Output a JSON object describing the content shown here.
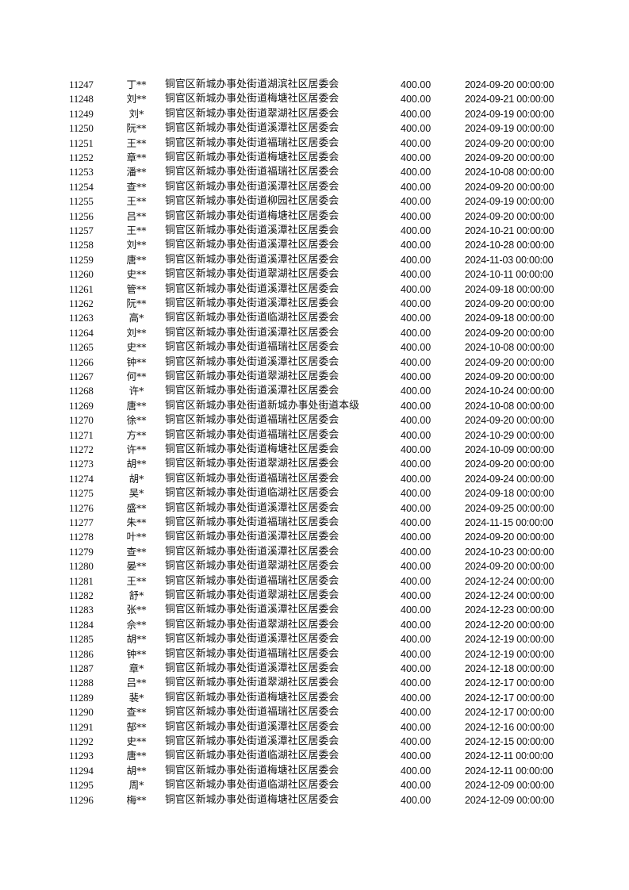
{
  "rows": [
    [
      "11247",
      "丁**",
      "铜官区新城办事处街道湖滨社区居委会",
      "400.00",
      "2024-09-20 00:00:00"
    ],
    [
      "11248",
      "刘**",
      "铜官区新城办事处街道梅塘社区居委会",
      "400.00",
      "2024-09-21 00:00:00"
    ],
    [
      "11249",
      "刘*",
      "铜官区新城办事处街道翠湖社区居委会",
      "400.00",
      "2024-09-19 00:00:00"
    ],
    [
      "11250",
      "阮**",
      "铜官区新城办事处街道溪潭社区居委会",
      "400.00",
      "2024-09-19 00:00:00"
    ],
    [
      "11251",
      "王**",
      "铜官区新城办事处街道福瑞社区居委会",
      "400.00",
      "2024-09-20 00:00:00"
    ],
    [
      "11252",
      "章**",
      "铜官区新城办事处街道梅塘社区居委会",
      "400.00",
      "2024-09-20 00:00:00"
    ],
    [
      "11253",
      "潘**",
      "铜官区新城办事处街道福瑞社区居委会",
      "400.00",
      "2024-10-08 00:00:00"
    ],
    [
      "11254",
      "查**",
      "铜官区新城办事处街道溪潭社区居委会",
      "400.00",
      "2024-09-20 00:00:00"
    ],
    [
      "11255",
      "王**",
      "铜官区新城办事处街道柳园社区居委会",
      "400.00",
      "2024-09-19 00:00:00"
    ],
    [
      "11256",
      "吕**",
      "铜官区新城办事处街道梅塘社区居委会",
      "400.00",
      "2024-09-20 00:00:00"
    ],
    [
      "11257",
      "王**",
      "铜官区新城办事处街道溪潭社区居委会",
      "400.00",
      "2024-10-21 00:00:00"
    ],
    [
      "11258",
      "刘**",
      "铜官区新城办事处街道溪潭社区居委会",
      "400.00",
      "2024-10-28 00:00:00"
    ],
    [
      "11259",
      "唐**",
      "铜官区新城办事处街道溪潭社区居委会",
      "400.00",
      "2024-11-03 00:00:00"
    ],
    [
      "11260",
      "史**",
      "铜官区新城办事处街道翠湖社区居委会",
      "400.00",
      "2024-10-11 00:00:00"
    ],
    [
      "11261",
      "管**",
      "铜官区新城办事处街道溪潭社区居委会",
      "400.00",
      "2024-09-18 00:00:00"
    ],
    [
      "11262",
      "阮**",
      "铜官区新城办事处街道溪潭社区居委会",
      "400.00",
      "2024-09-20 00:00:00"
    ],
    [
      "11263",
      "高*",
      "铜官区新城办事处街道临湖社区居委会",
      "400.00",
      "2024-09-18 00:00:00"
    ],
    [
      "11264",
      "刘**",
      "铜官区新城办事处街道溪潭社区居委会",
      "400.00",
      "2024-09-20 00:00:00"
    ],
    [
      "11265",
      "史**",
      "铜官区新城办事处街道福瑞社区居委会",
      "400.00",
      "2024-10-08 00:00:00"
    ],
    [
      "11266",
      "钟**",
      "铜官区新城办事处街道溪潭社区居委会",
      "400.00",
      "2024-09-20 00:00:00"
    ],
    [
      "11267",
      "何**",
      "铜官区新城办事处街道翠湖社区居委会",
      "400.00",
      "2024-09-20 00:00:00"
    ],
    [
      "11268",
      "许*",
      "铜官区新城办事处街道溪潭社区居委会",
      "400.00",
      "2024-10-24 00:00:00"
    ],
    [
      "11269",
      "唐**",
      "铜官区新城办事处街道新城办事处街道本级",
      "400.00",
      "2024-10-08 00:00:00"
    ],
    [
      "11270",
      "徐**",
      "铜官区新城办事处街道福瑞社区居委会",
      "400.00",
      "2024-09-20 00:00:00"
    ],
    [
      "11271",
      "方**",
      "铜官区新城办事处街道福瑞社区居委会",
      "400.00",
      "2024-10-29 00:00:00"
    ],
    [
      "11272",
      "许**",
      "铜官区新城办事处街道梅塘社区居委会",
      "400.00",
      "2024-10-09 00:00:00"
    ],
    [
      "11273",
      "胡**",
      "铜官区新城办事处街道翠湖社区居委会",
      "400.00",
      "2024-09-20 00:00:00"
    ],
    [
      "11274",
      "胡*",
      "铜官区新城办事处街道福瑞社区居委会",
      "400.00",
      "2024-09-24 00:00:00"
    ],
    [
      "11275",
      "吴*",
      "铜官区新城办事处街道临湖社区居委会",
      "400.00",
      "2024-09-18 00:00:00"
    ],
    [
      "11276",
      "盛**",
      "铜官区新城办事处街道溪潭社区居委会",
      "400.00",
      "2024-09-25 00:00:00"
    ],
    [
      "11277",
      "朱**",
      "铜官区新城办事处街道福瑞社区居委会",
      "400.00",
      "2024-11-15 00:00:00"
    ],
    [
      "11278",
      "叶**",
      "铜官区新城办事处街道溪潭社区居委会",
      "400.00",
      "2024-09-20 00:00:00"
    ],
    [
      "11279",
      "查**",
      "铜官区新城办事处街道溪潭社区居委会",
      "400.00",
      "2024-10-23 00:00:00"
    ],
    [
      "11280",
      "晏**",
      "铜官区新城办事处街道翠湖社区居委会",
      "400.00",
      "2024-09-20 00:00:00"
    ],
    [
      "11281",
      "王**",
      "铜官区新城办事处街道福瑞社区居委会",
      "400.00",
      "2024-12-24 00:00:00"
    ],
    [
      "11282",
      "舒*",
      "铜官区新城办事处街道翠湖社区居委会",
      "400.00",
      "2024-12-24 00:00:00"
    ],
    [
      "11283",
      "张**",
      "铜官区新城办事处街道溪潭社区居委会",
      "400.00",
      "2024-12-23 00:00:00"
    ],
    [
      "11284",
      "佘**",
      "铜官区新城办事处街道翠湖社区居委会",
      "400.00",
      "2024-12-20 00:00:00"
    ],
    [
      "11285",
      "胡**",
      "铜官区新城办事处街道溪潭社区居委会",
      "400.00",
      "2024-12-19 00:00:00"
    ],
    [
      "11286",
      "钟**",
      "铜官区新城办事处街道福瑞社区居委会",
      "400.00",
      "2024-12-19 00:00:00"
    ],
    [
      "11287",
      "章*",
      "铜官区新城办事处街道溪潭社区居委会",
      "400.00",
      "2024-12-18 00:00:00"
    ],
    [
      "11288",
      "吕**",
      "铜官区新城办事处街道翠湖社区居委会",
      "400.00",
      "2024-12-17 00:00:00"
    ],
    [
      "11289",
      "裴*",
      "铜官区新城办事处街道梅塘社区居委会",
      "400.00",
      "2024-12-17 00:00:00"
    ],
    [
      "11290",
      "查**",
      "铜官区新城办事处街道福瑞社区居委会",
      "400.00",
      "2024-12-17 00:00:00"
    ],
    [
      "11291",
      "郜**",
      "铜官区新城办事处街道溪潭社区居委会",
      "400.00",
      "2024-12-16 00:00:00"
    ],
    [
      "11292",
      "史**",
      "铜官区新城办事处街道溪潭社区居委会",
      "400.00",
      "2024-12-15 00:00:00"
    ],
    [
      "11293",
      "唐**",
      "铜官区新城办事处街道临湖社区居委会",
      "400.00",
      "2024-12-11 00:00:00"
    ],
    [
      "11294",
      "胡**",
      "铜官区新城办事处街道梅塘社区居委会",
      "400.00",
      "2024-12-11 00:00:00"
    ],
    [
      "11295",
      "周*",
      "铜官区新城办事处街道临湖社区居委会",
      "400.00",
      "2024-12-09 00:00:00"
    ],
    [
      "11296",
      "梅**",
      "铜官区新城办事处街道梅塘社区居委会",
      "400.00",
      "2024-12-09 00:00:00"
    ]
  ]
}
